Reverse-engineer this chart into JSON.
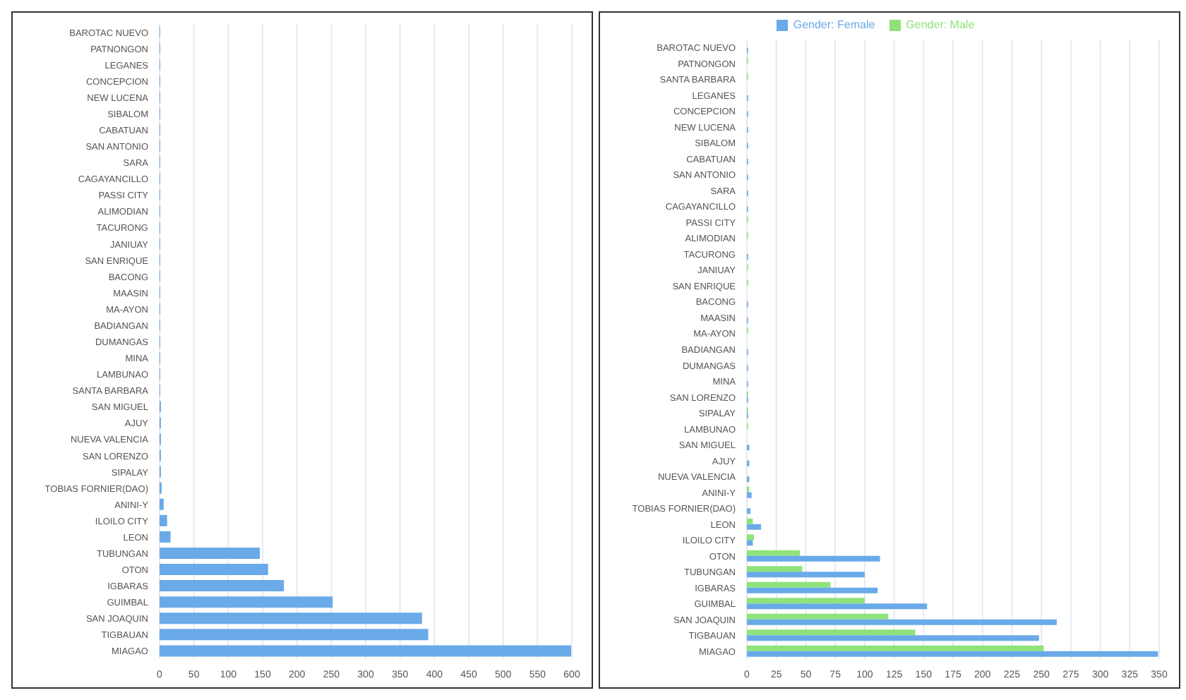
{
  "chart_data": [
    {
      "type": "bar",
      "orientation": "horizontal",
      "grid": "x",
      "categories": [
        "BAROTAC NUEVO",
        "PATNONGON",
        "LEGANES",
        "CONCEPCION",
        "NEW LUCENA",
        "SIBALOM",
        "CABATUAN",
        "SAN ANTONIO",
        "SARA",
        "CAGAYANCILLO",
        "PASSI CITY",
        "ALIMODIAN",
        "TACURONG",
        "JANIUAY",
        "SAN ENRIQUE",
        "BACONG",
        "MAASIN",
        "MA-AYON",
        "BADIANGAN",
        "DUMANGAS",
        "MINA",
        "LAMBUNAO",
        "SANTA BARBARA",
        "SAN MIGUEL",
        "AJUY",
        "NUEVA VALENCIA",
        "SAN LORENZO",
        "SIPALAY",
        "TOBIAS FORNIER(DAO)",
        "ANINI-Y",
        "ILOILO CITY",
        "LEON",
        "TUBUNGAN",
        "OTON",
        "IGBARAS",
        "GUIMBAL",
        "SAN JOAQUIN",
        "TIGBAUAN",
        "MIAGAO"
      ],
      "series": [
        {
          "color": "#6aaae8",
          "values": [
            1,
            1,
            1,
            1,
            1,
            1,
            1,
            1,
            1,
            1,
            1,
            1,
            1,
            1,
            1,
            1,
            1,
            1,
            1,
            1,
            1,
            1,
            1,
            2,
            2,
            2,
            2,
            2,
            3,
            6,
            11,
            16,
            146,
            158,
            181,
            252,
            382,
            391,
            599
          ]
        }
      ],
      "xlim": [
        0,
        600
      ],
      "xticks": [
        0,
        50,
        100,
        150,
        200,
        250,
        300,
        350,
        400,
        450,
        500,
        550,
        600
      ]
    },
    {
      "type": "bar",
      "orientation": "horizontal",
      "grid": "x",
      "legend": "top",
      "categories": [
        "BAROTAC NUEVO",
        "PATNONGON",
        "SANTA BARBARA",
        "LEGANES",
        "CONCEPCION",
        "NEW LUCENA",
        "SIBALOM",
        "CABATUAN",
        "SAN ANTONIO",
        "SARA",
        "CAGAYANCILLO",
        "PASSI CITY",
        "ALIMODIAN",
        "TACURONG",
        "JANIUAY",
        "SAN ENRIQUE",
        "BACONG",
        "MAASIN",
        "MA-AYON",
        "BADIANGAN",
        "DUMANGAS",
        "MINA",
        "SAN LORENZO",
        "SIPALAY",
        "LAMBUNAO",
        "SAN MIGUEL",
        "AJUY",
        "NUEVA VALENCIA",
        "ANINI-Y",
        "TOBIAS FORNIER(DAO)",
        "LEON",
        "ILOILO CITY",
        "OTON",
        "TUBUNGAN",
        "IGBARAS",
        "GUIMBAL",
        "SAN JOAQUIN",
        "TIGBAUAN",
        "MIAGAO"
      ],
      "series": [
        {
          "name": "Gender: Female",
          "color": "#6aaae8",
          "values": [
            1,
            0,
            0,
            1,
            1,
            1,
            1,
            1,
            1,
            1,
            1,
            0,
            0,
            1,
            0,
            0,
            1,
            1,
            0,
            1,
            1,
            1,
            1,
            1,
            0,
            2,
            2,
            2,
            4,
            3,
            12,
            5,
            113,
            100,
            111,
            153,
            263,
            248,
            349
          ]
        },
        {
          "name": "Gender: Male",
          "color": "#8ee27a",
          "values": [
            0,
            1,
            1,
            0,
            0,
            0,
            0,
            0,
            0,
            0,
            0,
            1,
            1,
            0,
            1,
            1,
            0,
            0,
            1,
            0,
            0,
            0,
            1,
            1,
            1,
            0,
            0,
            0,
            2,
            0,
            5,
            6,
            45,
            47,
            71,
            100,
            120,
            143,
            252
          ]
        }
      ],
      "xlim": [
        0,
        350
      ],
      "xticks": [
        0,
        25,
        50,
        75,
        100,
        125,
        150,
        175,
        200,
        225,
        250,
        275,
        300,
        325,
        350
      ]
    }
  ]
}
